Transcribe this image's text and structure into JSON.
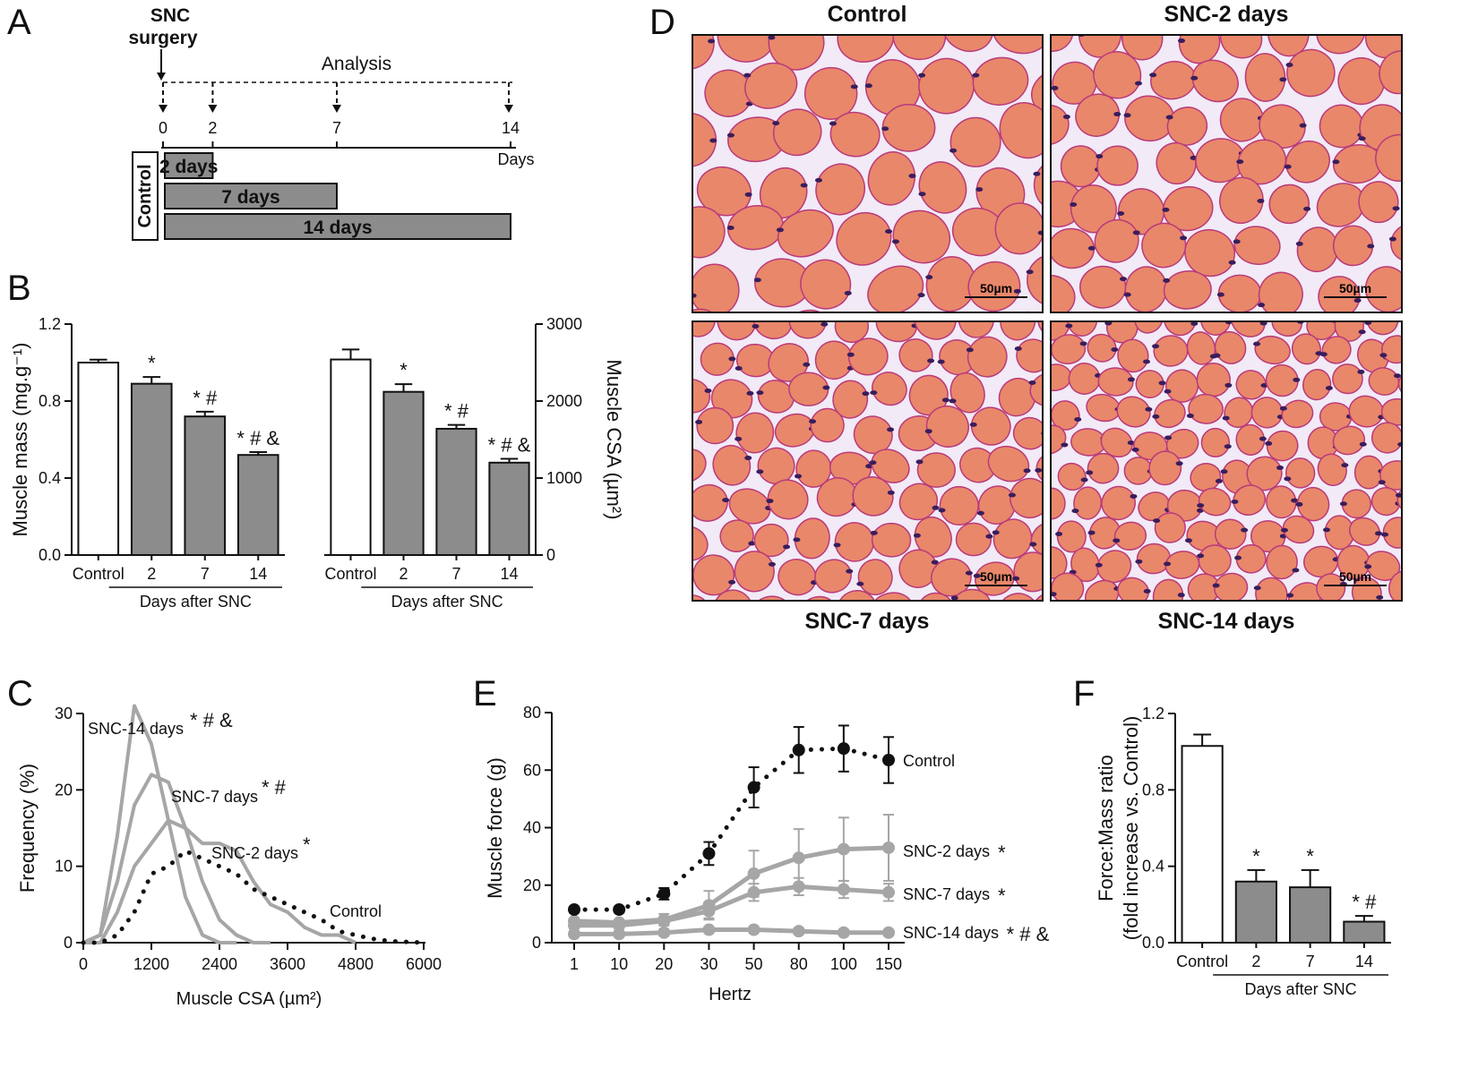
{
  "panel_letters": {
    "a": "A",
    "b": "B",
    "c": "C",
    "d": "D",
    "e": "E",
    "f": "F"
  },
  "colors": {
    "gray_bar": "#8c8c8c",
    "gray_line": "#a6a6a6",
    "black": "#111111",
    "muscle": "#e9876a",
    "membrane": "#b83a7c",
    "nucleus": "#3a1d5c",
    "connective": "#f2eaf6"
  },
  "panelA": {
    "surgery_label_1": "SNC",
    "surgery_label_2": "surgery",
    "analysis_label": "Analysis",
    "axis_unit": "Days",
    "ticks": [
      0,
      2,
      7,
      14
    ],
    "control_label": "Control",
    "groups": [
      {
        "label": "2 days",
        "days": 2
      },
      {
        "label": "7 days",
        "days": 7
      },
      {
        "label": "14 days",
        "days": 14
      }
    ]
  },
  "panelD": {
    "scale_bar": "50µm",
    "images": [
      {
        "title": "Control",
        "seed": 3,
        "size": 1.0
      },
      {
        "title": "SNC-2 days",
        "seed": 7,
        "size": 0.85
      },
      {
        "title": "SNC-7 days",
        "seed": 11,
        "size": 0.72
      },
      {
        "title": "SNC-14 days",
        "seed": 19,
        "size": 0.6
      }
    ]
  },
  "chart_data": [
    {
      "id": "B1",
      "type": "bar",
      "axis_side": "left",
      "categories": [
        "Control",
        "2",
        "7",
        "14"
      ],
      "values": [
        1.0,
        0.89,
        0.72,
        0.52
      ],
      "errors": [
        0.015,
        0.035,
        0.025,
        0.015
      ],
      "fills": [
        "white",
        "gray",
        "gray",
        "gray"
      ],
      "annotations": [
        "",
        "*",
        "*#",
        "*#&"
      ],
      "ylim": [
        0,
        1.2
      ],
      "yticks": [
        "0.0",
        "0.4",
        "0.8",
        "1.2"
      ],
      "ylabel": "Muscle mass (mg.g⁻¹)",
      "group_label": "Days after SNC"
    },
    {
      "id": "B2",
      "type": "bar",
      "axis_side": "right",
      "categories": [
        "Control",
        "2",
        "7",
        "14"
      ],
      "values": [
        2540,
        2120,
        1640,
        1200
      ],
      "errors": [
        130,
        100,
        50,
        50
      ],
      "fills": [
        "white",
        "gray",
        "gray",
        "gray"
      ],
      "annotations": [
        "",
        "*",
        "*#",
        "*#&"
      ],
      "ylim": [
        0,
        3000
      ],
      "yticks": [
        "0",
        "1000",
        "2000",
        "3000"
      ],
      "ylabel": "Muscle CSA (µm²)",
      "group_label": "Days after SNC"
    },
    {
      "id": "C",
      "type": "line",
      "xlim": [
        0,
        6000
      ],
      "ylim": [
        0,
        30
      ],
      "xticks": [
        "0",
        "1200",
        "2400",
        "3600",
        "4800",
        "6000"
      ],
      "yticks": [
        "0",
        "10",
        "20",
        "30"
      ],
      "xlabel": "Muscle CSA (µm²)",
      "ylabel": "Frequency (%)",
      "series": [
        {
          "name": "SNC-14 days",
          "annotation": "*#&",
          "style": "gray",
          "x": [
            0,
            300,
            600,
            900,
            1200,
            1500,
            1800,
            2100,
            2400,
            2700
          ],
          "y": [
            0,
            1,
            14,
            31,
            26,
            16,
            6,
            1,
            0,
            0
          ]
        },
        {
          "name": "SNC-7 days",
          "annotation": "*#",
          "style": "gray",
          "x": [
            0,
            300,
            600,
            900,
            1200,
            1500,
            1800,
            2100,
            2400,
            2700,
            3000,
            3300
          ],
          "y": [
            0,
            1,
            8,
            18,
            22,
            21,
            15,
            8,
            3,
            1,
            0,
            0
          ]
        },
        {
          "name": "SNC-2 days",
          "annotation": "*",
          "style": "gray",
          "x": [
            0,
            300,
            600,
            900,
            1200,
            1500,
            1800,
            2100,
            2400,
            2700,
            3000,
            3300,
            3600,
            3900,
            4200,
            4500,
            4800
          ],
          "y": [
            0,
            0,
            4,
            10,
            13,
            16,
            15,
            13,
            13,
            12,
            8,
            5,
            4,
            2,
            1,
            1,
            0
          ]
        },
        {
          "name": "Control",
          "annotation": "",
          "style": "dotted",
          "x": [
            0,
            300,
            600,
            900,
            1200,
            1500,
            1800,
            2100,
            2400,
            2700,
            3000,
            3300,
            3600,
            3900,
            4200,
            4500,
            4800,
            5100,
            5400,
            5700,
            6000
          ],
          "y": [
            0,
            0,
            1,
            4,
            9,
            10,
            12,
            11,
            10,
            9,
            7,
            6,
            5,
            4,
            3,
            1.5,
            1,
            0.5,
            0.2,
            0.1,
            0
          ]
        }
      ]
    },
    {
      "id": "E",
      "type": "line",
      "categories": [
        "1",
        "10",
        "20",
        "30",
        "50",
        "80",
        "100",
        "150"
      ],
      "ylim": [
        0,
        80
      ],
      "yticks": [
        "0",
        "20",
        "40",
        "60",
        "80"
      ],
      "xlabel": "Hertz",
      "ylabel": "Muscle force (g)",
      "series": [
        {
          "name": "Control",
          "annotation": "",
          "style": "dotted",
          "values": [
            11.5,
            11.5,
            17,
            31,
            54,
            67,
            67.5,
            63.5
          ],
          "errors": [
            1,
            1,
            2,
            4,
            7,
            8,
            8,
            8
          ]
        },
        {
          "name": "SNC-2 days",
          "annotation": "*",
          "style": "gray",
          "values": [
            7.5,
            7,
            8,
            13,
            24,
            29.5,
            32.5,
            33
          ],
          "errors": [
            1,
            1,
            2,
            5,
            8,
            10,
            11,
            11.5
          ]
        },
        {
          "name": "SNC-7 days",
          "annotation": "*",
          "style": "gray",
          "values": [
            6,
            6,
            7.5,
            11,
            17.5,
            19.5,
            18.5,
            17.5
          ],
          "errors": [
            1,
            1,
            1.5,
            2.5,
            3,
            3,
            3,
            3
          ]
        },
        {
          "name": "SNC-14 days",
          "annotation": "*#&",
          "style": "gray",
          "values": [
            3,
            3,
            3.5,
            4.5,
            4.5,
            4,
            3.5,
            3.5
          ],
          "errors": [
            1,
            1,
            1,
            1,
            1,
            1,
            1,
            1
          ]
        }
      ]
    },
    {
      "id": "F",
      "type": "bar",
      "axis_side": "left",
      "categories": [
        "Control",
        "2",
        "7",
        "14"
      ],
      "values": [
        1.03,
        0.32,
        0.29,
        0.11
      ],
      "errors": [
        0.06,
        0.06,
        0.09,
        0.03
      ],
      "fills": [
        "white",
        "gray",
        "gray",
        "gray"
      ],
      "annotations": [
        "",
        "*",
        "*",
        "*#"
      ],
      "ylim": [
        0,
        1.2
      ],
      "yticks": [
        "0.0",
        "0.4",
        "0.8",
        "1.2"
      ],
      "ylabel_lines": [
        "Force:Mass ratio",
        "(fold increase vs. Control)"
      ],
      "group_label": "Days after SNC"
    }
  ]
}
